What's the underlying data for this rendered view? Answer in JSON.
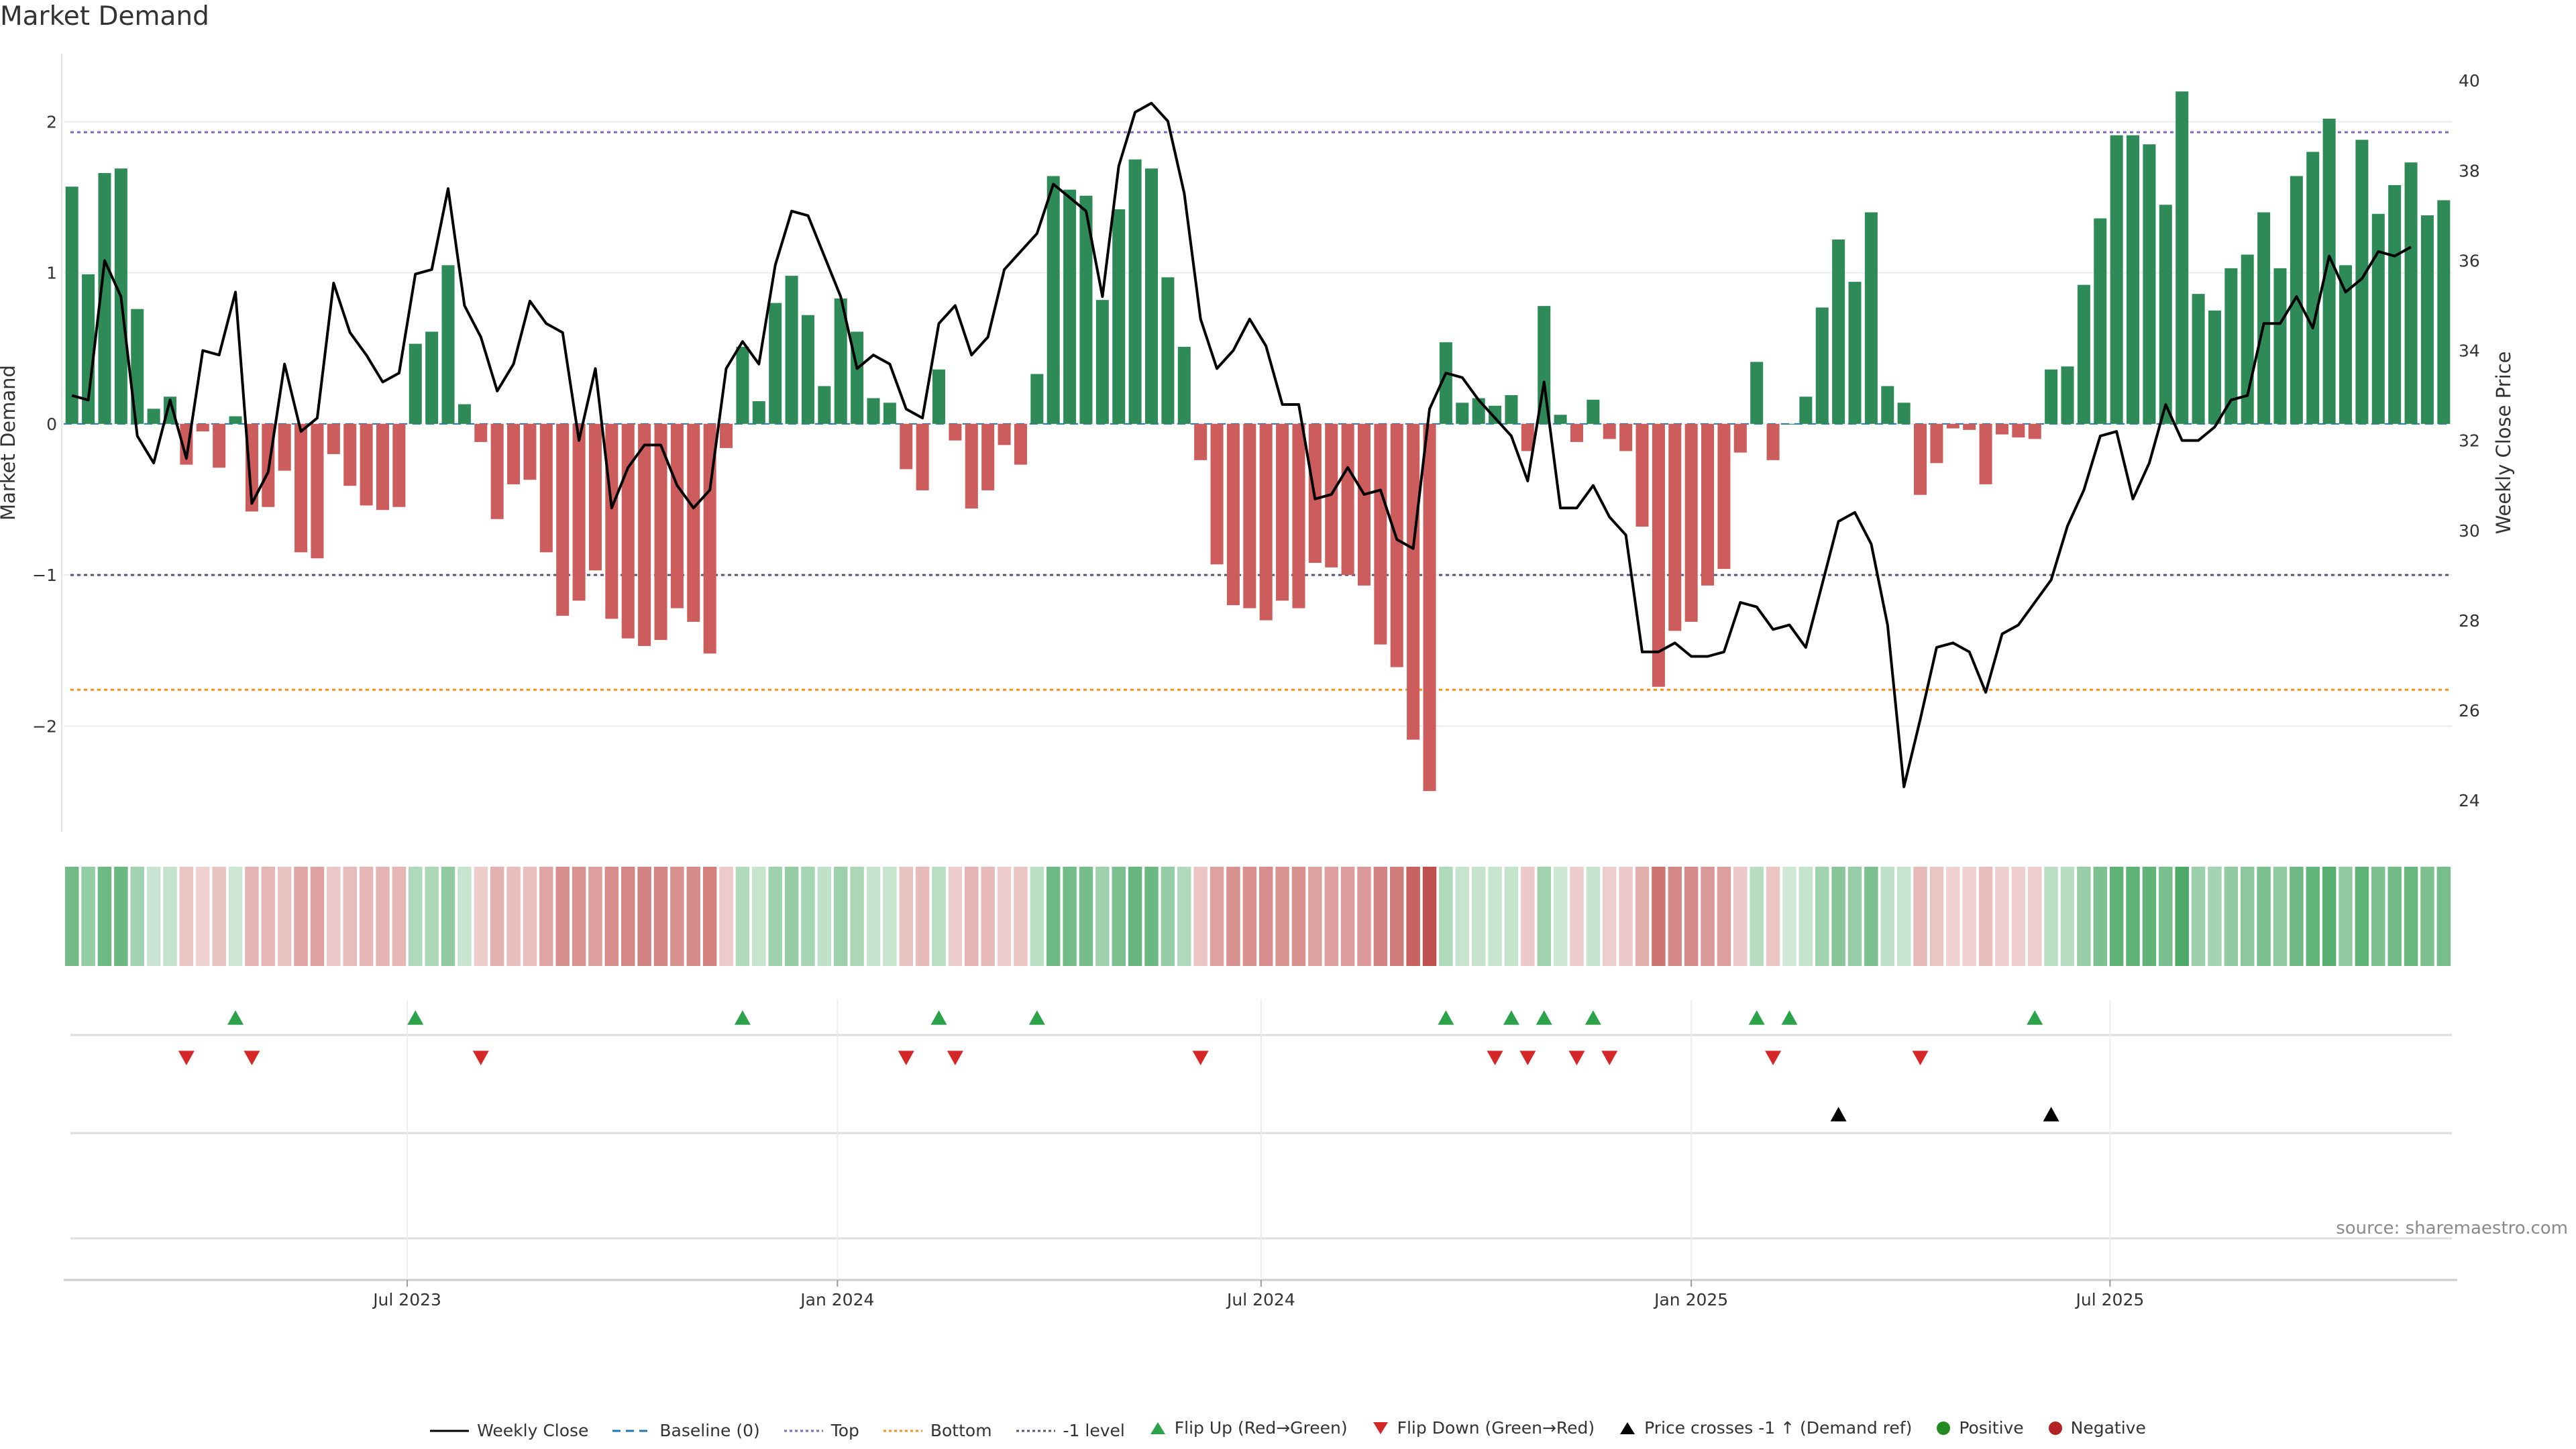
{
  "chart_data": {
    "type": "bar",
    "title": "Market Demand",
    "ylabel": "Market Demand",
    "y2label": "Weekly Close Price",
    "ylim": [
      -2.7,
      2.45
    ],
    "y2lim": [
      23.3,
      40.6
    ],
    "yticks": [
      2,
      1,
      0,
      -1,
      -2
    ],
    "ytick_labels": [
      "2",
      "1",
      "0",
      "−1",
      "−2"
    ],
    "y2ticks": [
      40,
      38,
      36,
      34,
      32,
      30,
      28,
      26,
      24
    ],
    "levels": {
      "top": 1.93,
      "minus_one": -1.0,
      "bottom": -1.76
    },
    "xtick_labels": [
      "Jul 2023",
      "Jan 2024",
      "Jul 2024",
      "Jan 2025",
      "Jul 2025"
    ],
    "xtick_index": [
      20.5,
      46.8,
      72.7,
      99.0,
      124.6
    ],
    "demand": [
      1.57,
      0.99,
      1.66,
      1.69,
      0.76,
      0.1,
      0.18,
      -0.27,
      -0.05,
      -0.29,
      0.05,
      -0.58,
      -0.55,
      -0.31,
      -0.85,
      -0.89,
      -0.2,
      -0.41,
      -0.54,
      -0.57,
      -0.55,
      0.53,
      0.61,
      1.05,
      0.13,
      -0.12,
      -0.63,
      -0.4,
      -0.37,
      -0.85,
      -1.27,
      -1.17,
      -0.97,
      -1.29,
      -1.42,
      -1.47,
      -1.43,
      -1.22,
      -1.31,
      -1.52,
      -0.16,
      0.51,
      0.15,
      0.8,
      0.98,
      0.72,
      0.25,
      0.83,
      0.61,
      0.17,
      0.14,
      -0.3,
      -0.44,
      0.36,
      -0.11,
      -0.56,
      -0.44,
      -0.14,
      -0.27,
      0.33,
      1.64,
      1.55,
      1.51,
      0.82,
      1.42,
      1.75,
      1.69,
      0.97,
      0.51,
      -0.24,
      -0.93,
      -1.2,
      -1.22,
      -1.3,
      -1.17,
      -1.22,
      -0.92,
      -0.95,
      -1.0,
      -1.07,
      -1.46,
      -1.61,
      -2.09,
      -2.43,
      0.54,
      0.14,
      0.17,
      0.12,
      0.19,
      -0.18,
      0.78,
      0.06,
      -0.12,
      0.16,
      -0.1,
      -0.18,
      -0.68,
      -1.74,
      -1.37,
      -1.31,
      -1.07,
      -0.96,
      -0.19,
      0.41,
      -0.24,
      0.0,
      0.18,
      0.77,
      1.22,
      0.94,
      1.4,
      0.25,
      0.14,
      -0.47,
      -0.26,
      -0.03,
      -0.04,
      -0.4,
      -0.07,
      -0.09,
      -0.1,
      0.36,
      0.38,
      0.92,
      1.36,
      1.91,
      1.91,
      1.85,
      1.45,
      2.2,
      0.86,
      0.75,
      1.03,
      1.12,
      1.4,
      1.03,
      1.64,
      1.8,
      2.02,
      1.05,
      1.88,
      1.39,
      1.58,
      1.73,
      1.38,
      1.48
    ],
    "close": [
      33.0,
      32.9,
      36.0,
      35.2,
      32.1,
      31.5,
      32.9,
      31.6,
      34.0,
      33.9,
      35.3,
      30.6,
      31.3,
      33.7,
      32.2,
      32.5,
      35.5,
      34.4,
      33.9,
      33.3,
      33.5,
      35.7,
      35.8,
      37.6,
      35.0,
      34.3,
      33.1,
      33.7,
      35.1,
      34.6,
      34.4,
      32.0,
      33.6,
      30.5,
      31.4,
      31.9,
      31.9,
      31.0,
      30.5,
      30.9,
      33.6,
      34.2,
      33.7,
      35.9,
      37.1,
      37.0,
      36.1,
      35.2,
      33.6,
      33.9,
      33.7,
      32.7,
      32.5,
      34.6,
      35.0,
      33.9,
      34.3,
      35.8,
      36.2,
      36.6,
      37.7,
      37.4,
      37.1,
      35.2,
      38.1,
      39.3,
      39.5,
      39.1,
      37.5,
      34.7,
      33.6,
      34.0,
      34.7,
      34.1,
      32.8,
      32.8,
      30.7,
      30.8,
      31.4,
      30.8,
      30.9,
      29.8,
      29.6,
      32.7,
      33.5,
      33.4,
      32.9,
      32.5,
      32.1,
      31.1,
      33.3,
      30.5,
      30.5,
      31.0,
      30.3,
      29.9,
      27.3,
      27.3,
      27.5,
      27.2,
      27.2,
      27.3,
      28.4,
      28.3,
      27.8,
      27.9,
      27.4,
      28.8,
      30.2,
      30.4,
      29.7,
      27.9,
      24.3,
      25.8,
      27.4,
      27.5,
      27.3,
      26.4,
      27.7,
      27.9,
      28.4,
      28.9,
      30.1,
      30.9,
      32.1,
      32.2,
      30.7,
      31.5,
      32.8,
      32.0,
      32.0,
      32.3,
      32.9,
      33.0,
      34.6,
      34.6,
      35.2,
      34.5,
      36.1,
      35.3,
      35.6,
      36.2,
      36.1,
      36.3
    ],
    "flip_up_index": [
      10,
      21,
      41,
      53,
      59,
      84,
      88,
      90,
      93,
      103,
      105,
      120
    ],
    "flip_down_index": [
      7,
      11,
      25,
      51,
      54,
      69,
      87,
      89,
      92,
      94,
      104,
      113
    ],
    "price_cross_index": [
      108,
      121
    ],
    "legend": {
      "weekly_close": "Weekly Close",
      "baseline": "Baseline (0)",
      "top": "Top",
      "bottom": "Bottom",
      "minus_one": "-1 level",
      "flip_up": "Flip Up (Red→Green)",
      "flip_down": "Flip Down (Green→Red)",
      "price_cross": "Price crosses -1 ↑ (Demand ref)",
      "positive": "Positive",
      "negative": "Negative"
    },
    "source": "source: sharemaestro.com"
  },
  "colors": {
    "positive": "#2e8b57",
    "negative": "#cd5c5c",
    "close": "#000000",
    "top_line": "#7b68c8",
    "bottom_line": "#ff8c1a",
    "minus_one_line": "#555577",
    "flip_up": "#2ca24a",
    "flip_down": "#d62728",
    "baseline": "#1f77b4",
    "positive_dot": "#228b22",
    "negative_dot": "#b22222"
  }
}
